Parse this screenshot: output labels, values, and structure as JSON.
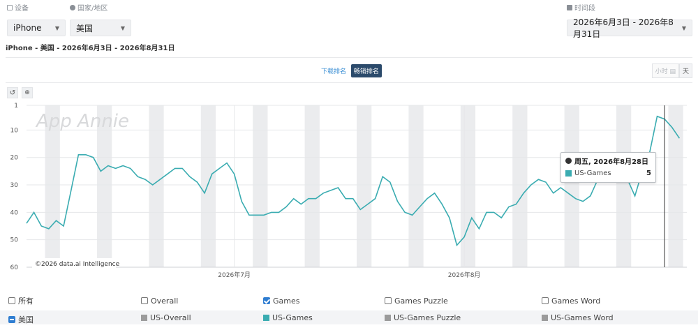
{
  "filters": {
    "device_label": "设备",
    "device_value": "iPhone",
    "country_label": "国家/地区",
    "country_value": "美国",
    "period_label": "时间段",
    "period_value": "2026年6月3日 - 2026年8月31日"
  },
  "subtitle": "iPhone - 美国 - 2026年6月3日 - 2026年8月31日",
  "rank_toggle": {
    "download": "下载排名",
    "grossing": "畅销排名",
    "active": "grossing"
  },
  "unit_toggle": {
    "hour": "小时",
    "day": "天",
    "active": "day"
  },
  "tools": {
    "reset": "↺",
    "zoom": "🔍"
  },
  "colors": {
    "series": "#3aacb1",
    "band": "#ebecee",
    "grid": "#e6e7e9",
    "cursor": "#333333",
    "check": "#2f7dd1",
    "gray_swatch": "#9b9b9b"
  },
  "chart_data": {
    "type": "line",
    "watermark": "App Annie",
    "copyright": "©2026 data.ai Intelligence",
    "x_start": "2026-06-03",
    "x_end": "2026-08-31",
    "x_tick_labels": [
      {
        "date": "2026-07-01",
        "label": "2026年7月"
      },
      {
        "date": "2026-08-01",
        "label": "2026年8月"
      }
    ],
    "y_axis": {
      "reversed": true,
      "ylim": [
        1,
        60
      ],
      "ticks": [
        1,
        10,
        20,
        30,
        40,
        50,
        60
      ]
    },
    "weekend_bands": true,
    "series": [
      {
        "name": "US-Games",
        "values": [
          44,
          40,
          45,
          46,
          43,
          45,
          32,
          19,
          19,
          20,
          25,
          23,
          24,
          23,
          24,
          27,
          28,
          30,
          28,
          26,
          24,
          24,
          27,
          29,
          33,
          26,
          24,
          22,
          26,
          36,
          41,
          41,
          41,
          40,
          40,
          38,
          35,
          37,
          35,
          35,
          33,
          32,
          31,
          35,
          35,
          39,
          37,
          35,
          27,
          29,
          36,
          40,
          41,
          38,
          35,
          33,
          37,
          42,
          52,
          49,
          42,
          46,
          40,
          40,
          42,
          38,
          37,
          33,
          30,
          28,
          29,
          33,
          31,
          33,
          35,
          36,
          34,
          28,
          28,
          29,
          26,
          28,
          34,
          25,
          18,
          5,
          6,
          9,
          13
        ]
      }
    ],
    "tooltip": {
      "date": "周五, 2026年8月28日",
      "series": "US-Games",
      "value": 5
    }
  },
  "legend": {
    "header": [
      {
        "label": "所有",
        "checked": false
      },
      {
        "label": "Overall",
        "checked": false
      },
      {
        "label": "Games",
        "checked": true
      },
      {
        "label": "Games Puzzle",
        "checked": false
      },
      {
        "label": "Games Word",
        "checked": false
      }
    ],
    "country": "美国",
    "items": [
      {
        "label": "US-Overall",
        "color": "#9b9b9b"
      },
      {
        "label": "US-Games",
        "color": "#3aacb1"
      },
      {
        "label": "US-Games Puzzle",
        "color": "#9b9b9b"
      },
      {
        "label": "US-Games Word",
        "color": "#9b9b9b"
      }
    ]
  }
}
